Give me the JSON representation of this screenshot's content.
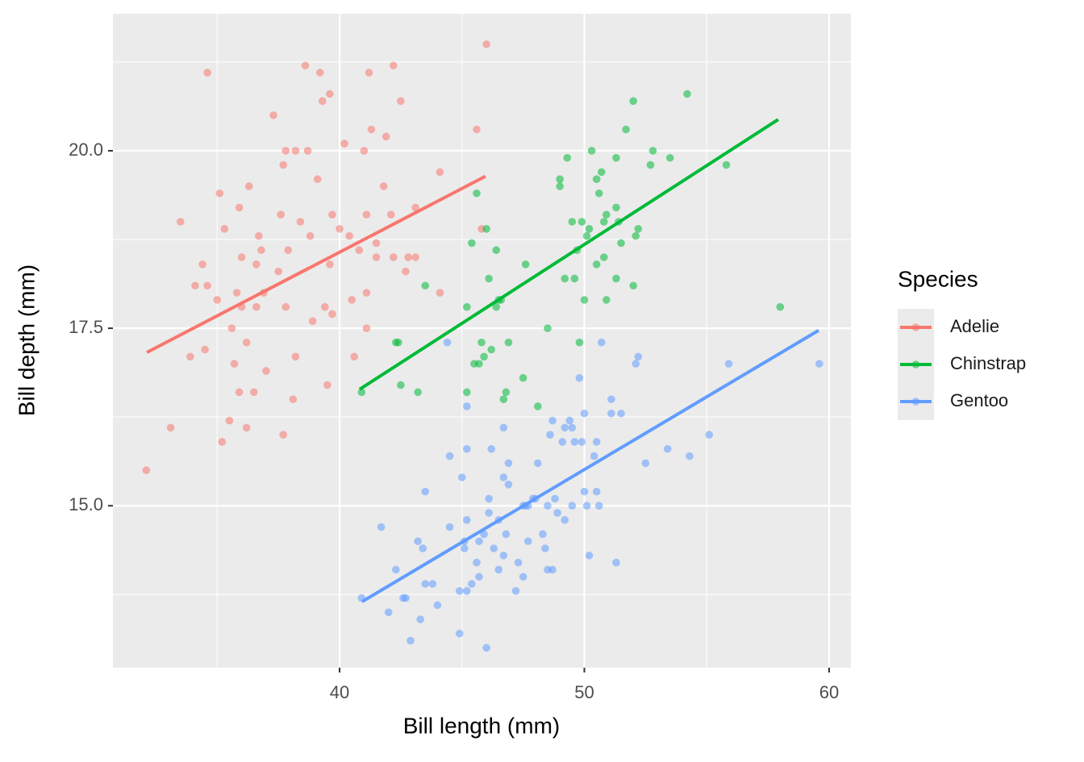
{
  "chart_data": {
    "type": "scatter",
    "x_label": "Bill length (mm)",
    "y_label": "Bill depth (mm)",
    "legend_title": "Species",
    "xlim": [
      30.74,
      60.89
    ],
    "ylim": [
      12.72,
      21.93
    ],
    "xticks": [
      40,
      50,
      60
    ],
    "yticks": [
      {
        "value": 15,
        "label": "15.0"
      },
      {
        "value": 17.5,
        "label": "17.5"
      },
      {
        "value": 20,
        "label": "20.0"
      }
    ],
    "x_minor_ticks": [
      35,
      45,
      55
    ],
    "y_minor_ticks": [
      13.75,
      16.25,
      18.75,
      21.25
    ],
    "grid": true,
    "legend_position": "right",
    "series": [
      {
        "name": "Adelie",
        "color": "#F8766D",
        "x": [
          32.1,
          33.1,
          33.5,
          34.6,
          34.1,
          34.4,
          34.5,
          33.9,
          35.0,
          35.1,
          35.2,
          35.3,
          35.5,
          35.6,
          35.7,
          35.8,
          35.9,
          35.9,
          36.0,
          36.0,
          36.2,
          36.2,
          36.3,
          36.5,
          36.6,
          36.6,
          36.7,
          36.8,
          36.9,
          37.0,
          37.3,
          37.5,
          37.6,
          37.7,
          37.7,
          37.8,
          37.8,
          37.9,
          38.1,
          38.2,
          38.2,
          38.4,
          38.6,
          38.7,
          38.8,
          38.9,
          39.1,
          39.2,
          39.3,
          39.4,
          39.5,
          39.6,
          39.6,
          39.7,
          39.7,
          40.0,
          40.2,
          40.4,
          40.5,
          40.6,
          40.8,
          41.0,
          41.1,
          41.1,
          41.1,
          41.2,
          41.3,
          41.5,
          41.5,
          41.8,
          41.9,
          42.1,
          42.2,
          42.2,
          42.5,
          42.7,
          42.8,
          43.1,
          43.1,
          44.1,
          44.1,
          45.6,
          46.0,
          45.8,
          34.6
        ],
        "y": [
          15.5,
          16.1,
          19.0,
          21.1,
          18.1,
          18.4,
          17.2,
          17.1,
          17.9,
          19.4,
          15.9,
          18.9,
          16.2,
          17.5,
          17.0,
          18.0,
          16.6,
          19.2,
          18.5,
          17.8,
          16.1,
          17.3,
          19.5,
          16.6,
          18.4,
          17.8,
          18.8,
          18.6,
          18.0,
          16.9,
          20.5,
          18.3,
          19.1,
          19.8,
          16.0,
          20.0,
          17.8,
          18.6,
          16.5,
          20.0,
          17.1,
          19.0,
          21.2,
          20.0,
          18.8,
          17.6,
          19.6,
          21.1,
          20.7,
          17.8,
          16.7,
          20.8,
          18.4,
          17.7,
          19.1,
          18.9,
          20.1,
          18.8,
          17.9,
          17.1,
          18.6,
          20.0,
          17.5,
          19.1,
          18.0,
          21.1,
          20.3,
          18.7,
          18.5,
          19.5,
          20.2,
          19.1,
          18.5,
          21.2,
          20.7,
          18.3,
          18.5,
          19.2,
          18.5,
          19.7,
          18.0,
          20.3,
          21.5,
          18.9,
          18.1
        ],
        "fit_x": [
          32.13,
          45.96
        ],
        "fit_y": [
          17.16,
          19.64
        ]
      },
      {
        "name": "Chinstrap",
        "color": "#00BA38",
        "x": [
          40.9,
          42.3,
          42.4,
          42.5,
          43.2,
          43.5,
          45.2,
          45.2,
          45.4,
          45.5,
          45.6,
          45.7,
          45.8,
          45.9,
          46.0,
          46.1,
          46.2,
          46.4,
          46.4,
          46.5,
          46.6,
          46.7,
          46.8,
          46.9,
          47.5,
          47.6,
          48.1,
          48.5,
          49.0,
          49.0,
          49.2,
          49.3,
          49.5,
          49.6,
          49.7,
          49.8,
          49.9,
          50.0,
          50.1,
          50.2,
          50.3,
          50.5,
          50.5,
          50.6,
          50.7,
          50.8,
          50.8,
          50.9,
          50.9,
          51.3,
          51.3,
          51.3,
          51.4,
          51.5,
          51.7,
          52.0,
          52.0,
          52.1,
          52.2,
          52.7,
          52.8,
          53.5,
          54.2,
          55.8,
          58.0
        ],
        "y": [
          16.6,
          17.3,
          17.3,
          16.7,
          16.6,
          18.1,
          16.6,
          17.8,
          18.7,
          17.0,
          19.4,
          17.0,
          17.3,
          17.1,
          18.9,
          18.2,
          17.2,
          18.6,
          17.8,
          17.9,
          17.9,
          16.5,
          16.6,
          17.3,
          16.8,
          18.4,
          16.4,
          17.5,
          19.5,
          19.6,
          18.2,
          19.9,
          19.0,
          18.2,
          18.6,
          17.3,
          19.0,
          17.9,
          18.8,
          18.9,
          20.0,
          19.6,
          18.4,
          19.4,
          19.7,
          19.0,
          18.5,
          19.1,
          17.9,
          19.9,
          19.2,
          18.2,
          19.0,
          18.7,
          20.3,
          20.7,
          18.1,
          18.8,
          18.9,
          19.8,
          20.0,
          19.9,
          20.8,
          19.8,
          17.8
        ],
        "fit_x": [
          40.82,
          57.92
        ],
        "fit_y": [
          16.64,
          20.44
        ]
      },
      {
        "name": "Gentoo",
        "color": "#619CFF",
        "x": [
          40.9,
          41.7,
          42.0,
          42.3,
          42.6,
          42.7,
          42.9,
          43.2,
          43.3,
          43.4,
          43.5,
          43.5,
          43.8,
          44.0,
          44.5,
          44.5,
          44.4,
          44.9,
          44.9,
          45.0,
          45.1,
          45.1,
          45.2,
          45.2,
          45.2,
          45.2,
          45.4,
          45.6,
          45.7,
          45.7,
          45.9,
          46.0,
          46.1,
          46.1,
          46.2,
          46.3,
          46.5,
          46.5,
          46.7,
          46.7,
          46.7,
          46.8,
          46.9,
          46.9,
          47.2,
          47.3,
          47.5,
          47.5,
          47.6,
          47.7,
          47.7,
          47.9,
          48.0,
          48.1,
          48.3,
          48.4,
          48.5,
          48.5,
          48.6,
          48.7,
          48.7,
          48.8,
          48.9,
          49.1,
          49.2,
          49.2,
          49.4,
          49.5,
          49.5,
          49.6,
          49.8,
          49.9,
          50.0,
          50.0,
          50.1,
          50.2,
          50.4,
          50.5,
          50.5,
          50.6,
          50.7,
          51.1,
          51.1,
          51.3,
          51.5,
          52.1,
          52.2,
          52.5,
          53.4,
          54.3,
          55.1,
          55.9,
          59.6
        ],
        "y": [
          13.7,
          14.7,
          13.5,
          14.1,
          13.7,
          13.7,
          13.1,
          14.5,
          13.4,
          14.4,
          15.2,
          13.9,
          13.9,
          13.6,
          15.7,
          14.7,
          17.3,
          13.2,
          13.8,
          15.4,
          14.5,
          14.4,
          15.8,
          16.4,
          14.8,
          13.8,
          13.9,
          14.2,
          14.0,
          14.5,
          14.6,
          13.0,
          15.1,
          14.9,
          15.8,
          14.4,
          14.8,
          14.1,
          14.3,
          16.1,
          15.4,
          14.6,
          15.3,
          15.6,
          13.8,
          14.2,
          14.0,
          15.0,
          15.0,
          15.0,
          14.5,
          15.1,
          15.1,
          15.6,
          14.6,
          14.4,
          15.0,
          14.1,
          16.0,
          14.1,
          16.2,
          15.1,
          14.9,
          15.9,
          16.1,
          14.8,
          16.2,
          16.1,
          15.0,
          15.9,
          16.8,
          15.9,
          15.2,
          16.3,
          15.0,
          14.3,
          15.7,
          15.9,
          15.2,
          15.0,
          17.3,
          16.5,
          16.3,
          14.2,
          16.3,
          17.0,
          17.1,
          15.6,
          15.8,
          15.7,
          16.0,
          17.0,
          17.0
        ],
        "fit_x": [
          40.92,
          59.57
        ],
        "fit_y": [
          13.65,
          17.47
        ]
      }
    ]
  }
}
